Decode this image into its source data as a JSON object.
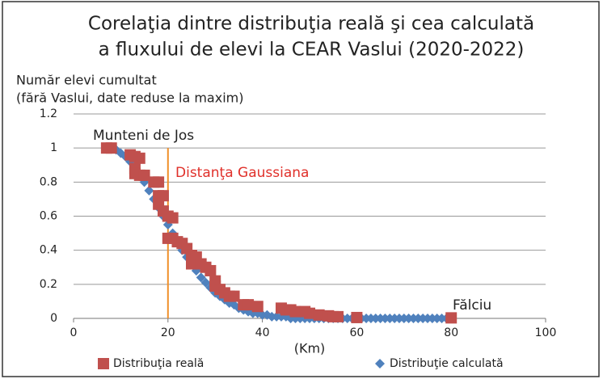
{
  "chart_data": {
    "type": "scatter",
    "title": [
      "Corelaţia dintre distribuţia reală şi cea calculată",
      "a fluxului de elevi la CEAR Vaslui (2020-2022)"
    ],
    "y_label": [
      "Număr elevi cumultat",
      "(fără Vaslui, date reduse la maxim)"
    ],
    "x_label": "(Km)",
    "annotations": {
      "start": "Munteni de Jos",
      "gauss": "Distanţa Gaussiana",
      "gauss_x": 20,
      "end": "Fălciu"
    },
    "xlim": [
      0,
      100
    ],
    "xticks": [
      0,
      20,
      40,
      60,
      80,
      100
    ],
    "ylim": [
      0,
      1.2
    ],
    "yticks": [
      0,
      0.2,
      0.4,
      0.6,
      0.8,
      1,
      1.2
    ],
    "grid": true,
    "series": [
      {
        "name": "Distribuţie calculată",
        "color": "#4f81bd",
        "marker": "diamond",
        "x": [
          7,
          8,
          9,
          10,
          11,
          12,
          13,
          14,
          15,
          16,
          17,
          18,
          19,
          20,
          21,
          22,
          23,
          24,
          25,
          26,
          27,
          28,
          29,
          30,
          31,
          32,
          33,
          34,
          35,
          36,
          37,
          38,
          39,
          40,
          41,
          42,
          43,
          44,
          45,
          46,
          47,
          48,
          49,
          50,
          51,
          52,
          53,
          54,
          55,
          56,
          57,
          58,
          59,
          60,
          61,
          62,
          63,
          64,
          65,
          66,
          67,
          68,
          69,
          70,
          71,
          72,
          73,
          74,
          75,
          76,
          77,
          78,
          79,
          80
        ],
        "values": [
          1,
          1,
          0.99,
          0.97,
          0.95,
          0.92,
          0.88,
          0.84,
          0.8,
          0.75,
          0.7,
          0.65,
          0.6,
          0.55,
          0.5,
          0.45,
          0.4,
          0.36,
          0.32,
          0.28,
          0.24,
          0.21,
          0.18,
          0.15,
          0.13,
          0.11,
          0.09,
          0.08,
          0.06,
          0.05,
          0.04,
          0.03,
          0.03,
          0.02,
          0.02,
          0.01,
          0.01,
          0.01,
          0.01,
          0,
          0,
          0,
          0,
          0,
          0,
          0,
          0,
          0,
          0,
          0,
          0,
          0,
          0,
          0,
          0,
          0,
          0,
          0,
          0,
          0,
          0,
          0,
          0,
          0,
          0,
          0,
          0,
          0,
          0,
          0,
          0,
          0,
          0,
          0
        ]
      },
      {
        "name": "Distribuţia reală",
        "color": "#c0504d",
        "marker": "square",
        "x": [
          7,
          8,
          12,
          13,
          14,
          13,
          13,
          14,
          15,
          17,
          18,
          18,
          19,
          18,
          19,
          20,
          21,
          20,
          21,
          22,
          23,
          24,
          25,
          26,
          25,
          27,
          28,
          29,
          30,
          30,
          31,
          32,
          33,
          34,
          36,
          37,
          39,
          44,
          45,
          46,
          47,
          49,
          50,
          52,
          54,
          55,
          56,
          60,
          80
        ],
        "values": [
          1,
          1,
          0.96,
          0.95,
          0.94,
          0.88,
          0.85,
          0.84,
          0.84,
          0.8,
          0.8,
          0.72,
          0.72,
          0.67,
          0.63,
          0.6,
          0.59,
          0.47,
          0.47,
          0.45,
          0.44,
          0.41,
          0.37,
          0.36,
          0.32,
          0.32,
          0.3,
          0.28,
          0.22,
          0.19,
          0.17,
          0.15,
          0.13,
          0.13,
          0.08,
          0.08,
          0.07,
          0.06,
          0.05,
          0.05,
          0.04,
          0.04,
          0.03,
          0.02,
          0.015,
          0.01,
          0.01,
          0.005,
          0.003
        ]
      }
    ]
  }
}
